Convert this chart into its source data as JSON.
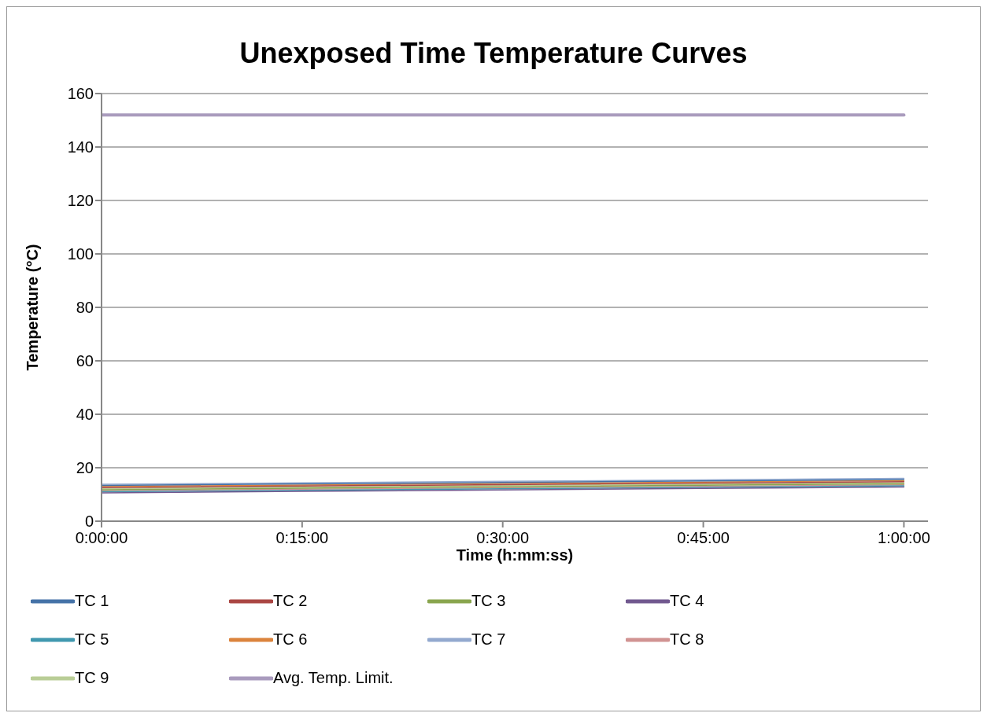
{
  "chart_data": {
    "type": "line",
    "title": "Unexposed Time Temperature Curves",
    "xlabel": "Time (h:mm:ss)",
    "ylabel": "Temperature (°C)",
    "x": [
      0,
      0.25,
      0.5,
      0.75,
      1
    ],
    "xlim": [
      0,
      1.03
    ],
    "xticks": [
      {
        "value": 0,
        "label": "0:00:00"
      },
      {
        "value": 0.25,
        "label": "0:15:00"
      },
      {
        "value": 0.5,
        "label": "0:30:00"
      },
      {
        "value": 0.75,
        "label": "0:45:00"
      },
      {
        "value": 1,
        "label": "1:00:00"
      }
    ],
    "ylim": [
      0,
      160
    ],
    "yticks": [
      0,
      20,
      40,
      60,
      80,
      100,
      120,
      140,
      160
    ],
    "grid": "y",
    "legend": "bottom",
    "marker": "none",
    "line_style": "solid",
    "series": [
      {
        "name": "TC 1",
        "color": "#4572a7",
        "values": [
          13.4,
          13.95,
          14.5,
          15.05,
          15.6
        ]
      },
      {
        "name": "TC 2",
        "color": "#aa4643",
        "values": [
          12.6,
          13.15,
          13.7,
          14.25,
          14.8
        ]
      },
      {
        "name": "TC 3",
        "color": "#89a54e",
        "values": [
          11.8,
          12.35,
          12.9,
          13.45,
          14
        ]
      },
      {
        "name": "TC 4",
        "color": "#71588f",
        "values": [
          10.6,
          11.15,
          11.7,
          12.25,
          12.8
        ]
      },
      {
        "name": "TC 5",
        "color": "#4198af",
        "values": [
          11,
          11.55,
          12.1,
          12.65,
          13.2
        ]
      },
      {
        "name": "TC 6",
        "color": "#db843d",
        "values": [
          13,
          13.55,
          14.1,
          14.65,
          15.2
        ]
      },
      {
        "name": "TC 7",
        "color": "#93a9cf",
        "values": [
          13.8,
          14.35,
          14.9,
          15.45,
          16
        ]
      },
      {
        "name": "TC 8",
        "color": "#d19392",
        "values": [
          11.4,
          11.95,
          12.5,
          13.05,
          13.6
        ]
      },
      {
        "name": "TC 9",
        "color": "#b9cd96",
        "values": [
          12.2,
          12.75,
          13.3,
          13.85,
          14.4
        ]
      },
      {
        "name": "Avg. Temp. Limit.",
        "color": "#a99bbd",
        "values": [
          152,
          152,
          152,
          152,
          152
        ]
      }
    ]
  }
}
